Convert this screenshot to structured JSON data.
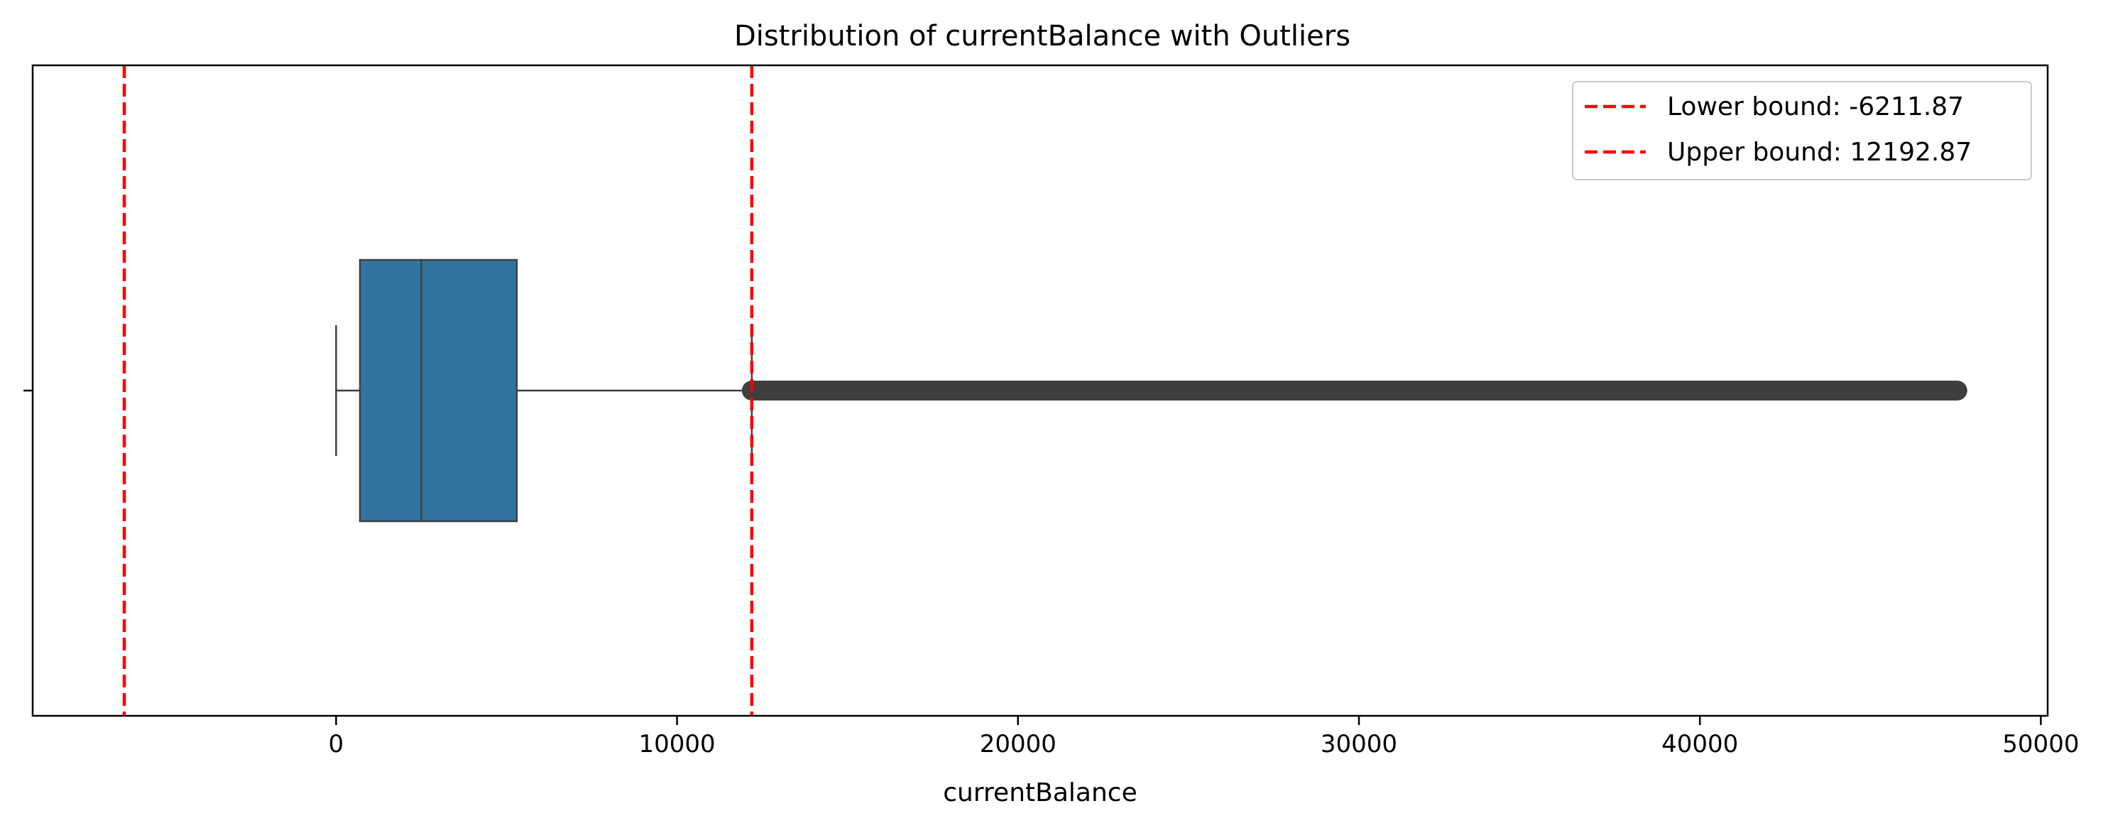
{
  "chart_data": {
    "type": "box",
    "title": "Distribution of currentBalance with Outliers",
    "xlabel": "currentBalance",
    "ylabel": "",
    "xlim": [
      -8900,
      50200
    ],
    "xticks": [
      {
        "value": 0,
        "label": "0"
      },
      {
        "value": 10000,
        "label": "10000"
      },
      {
        "value": 20000,
        "label": "20000"
      },
      {
        "value": 30000,
        "label": "30000"
      },
      {
        "value": 40000,
        "label": "40000"
      },
      {
        "value": 50000,
        "label": "50000"
      }
    ],
    "grid": false,
    "legend_position": "upper right",
    "box": {
      "whisker_low": 0,
      "q1": 700,
      "median": 2500,
      "q3": 5300,
      "whisker_high": 12192.87,
      "outliers_min": 12192.87,
      "outliers_max": 47550,
      "fill_color": "#3274a1",
      "edge_color": "#3f3f3f"
    },
    "reference_lines": [
      {
        "value": -6211.87,
        "label": "Lower bound: -6211.87",
        "color": "#ff0000",
        "style": "dashed"
      },
      {
        "value": 12192.87,
        "label": "Upper bound: 12192.87",
        "color": "#ff0000",
        "style": "dashed"
      }
    ]
  }
}
